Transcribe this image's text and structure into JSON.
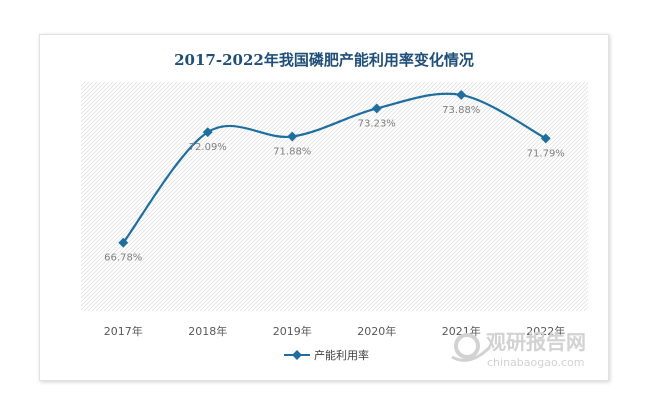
{
  "colors": {
    "title": "#1f4e79",
    "line": "#1f6ea0",
    "label": "#808080",
    "tick": "#595959",
    "legend": "#404040",
    "hatch": "#dcdcdc",
    "watermark": "#d2d2d2"
  },
  "chart_data": {
    "type": "line",
    "title": "2017-2022年我国磷肥产能利用率变化情况",
    "categories": [
      "2017年",
      "2018年",
      "2019年",
      "2020年",
      "2021年",
      "2022年"
    ],
    "series": [
      {
        "name": "产能利用率",
        "values": [
          66.78,
          72.09,
          71.88,
          73.23,
          73.88,
          71.79
        ],
        "labels": [
          "66.78%",
          "72.09%",
          "71.88%",
          "73.23%",
          "73.88%",
          "71.79%"
        ]
      }
    ],
    "ylim": [
      63.5,
      74.5
    ],
    "y_axis_visible": false,
    "grid": false,
    "plot_area_pattern": "diagonal-hatch",
    "smooth": true,
    "marker": "diamond",
    "legend_position": "bottom"
  },
  "watermark": {
    "icon": "magnifier-logo-icon",
    "text_cn": "观研报告网",
    "text_en": "chinabaogao.com"
  }
}
